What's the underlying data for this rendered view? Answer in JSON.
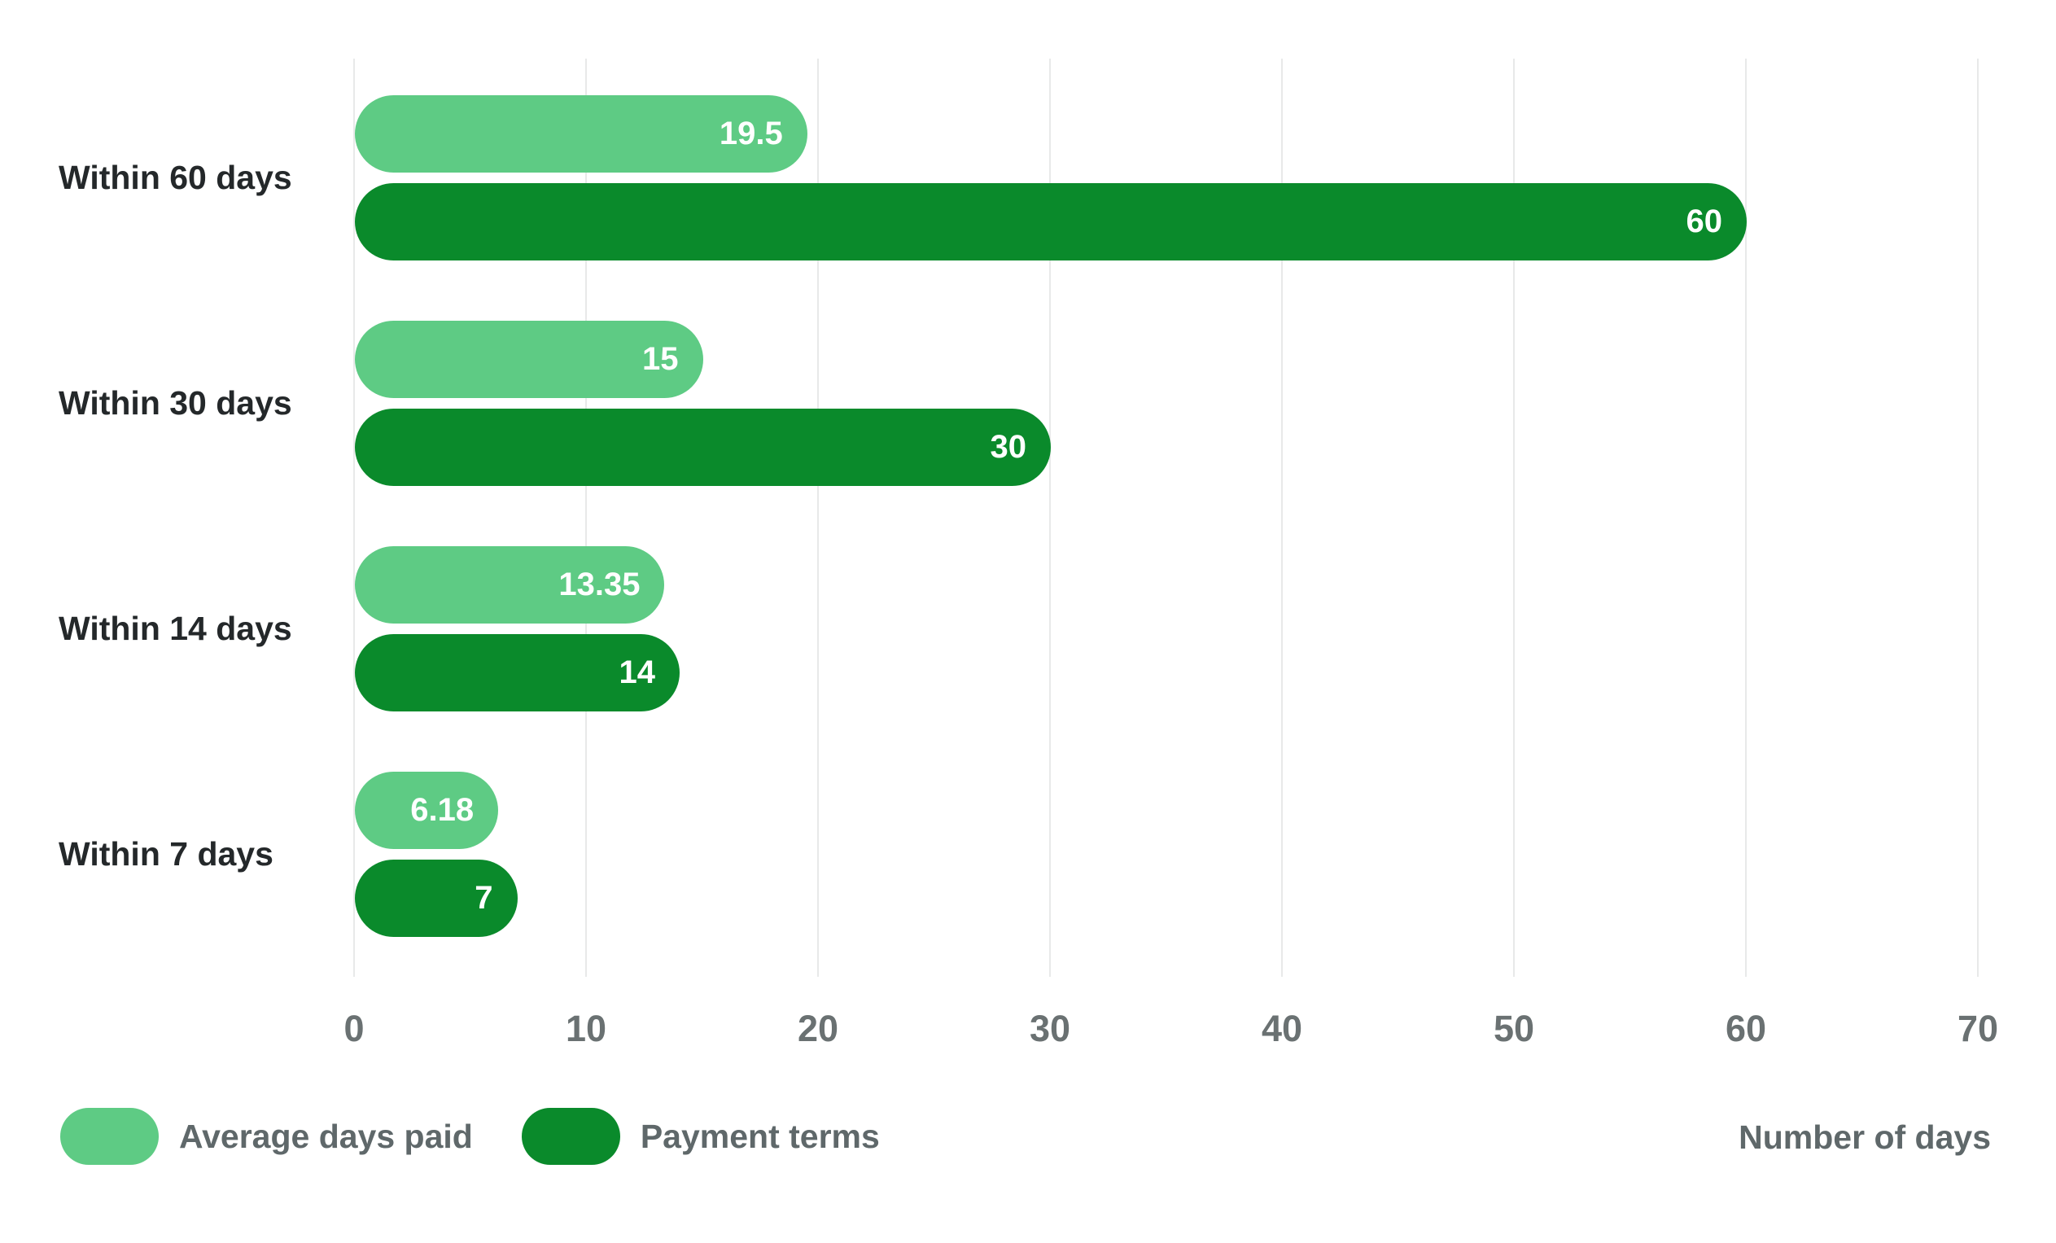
{
  "chart_data": {
    "type": "bar",
    "orientation": "horizontal",
    "title": "",
    "xlabel": "Number of days",
    "ylabel": "",
    "categories": [
      "Within 60 days",
      "Within 30 days",
      "Within 14 days",
      "Within 7 days"
    ],
    "series": [
      {
        "name": "Average days paid",
        "color": "#5ECB84",
        "values": [
          19.5,
          15,
          13.35,
          6.18
        ],
        "value_labels": [
          "19.5",
          "15",
          "13.35",
          "6.18"
        ]
      },
      {
        "name": "Payment terms",
        "color": "#0A8A2B",
        "values": [
          60,
          30,
          14,
          7
        ],
        "value_labels": [
          "60",
          "30",
          "14",
          "7"
        ]
      }
    ],
    "x_ticks": [
      0,
      10,
      20,
      30,
      40,
      50,
      60,
      70
    ],
    "xlim": [
      0,
      70
    ],
    "grid": "vertical-gridlines",
    "gridline_color": "#E8E9E9",
    "value_label_position": "inside-end",
    "value_label_color": "#ffffff",
    "legend_position": "bottom-left",
    "axis_title_position": "bottom-right"
  }
}
